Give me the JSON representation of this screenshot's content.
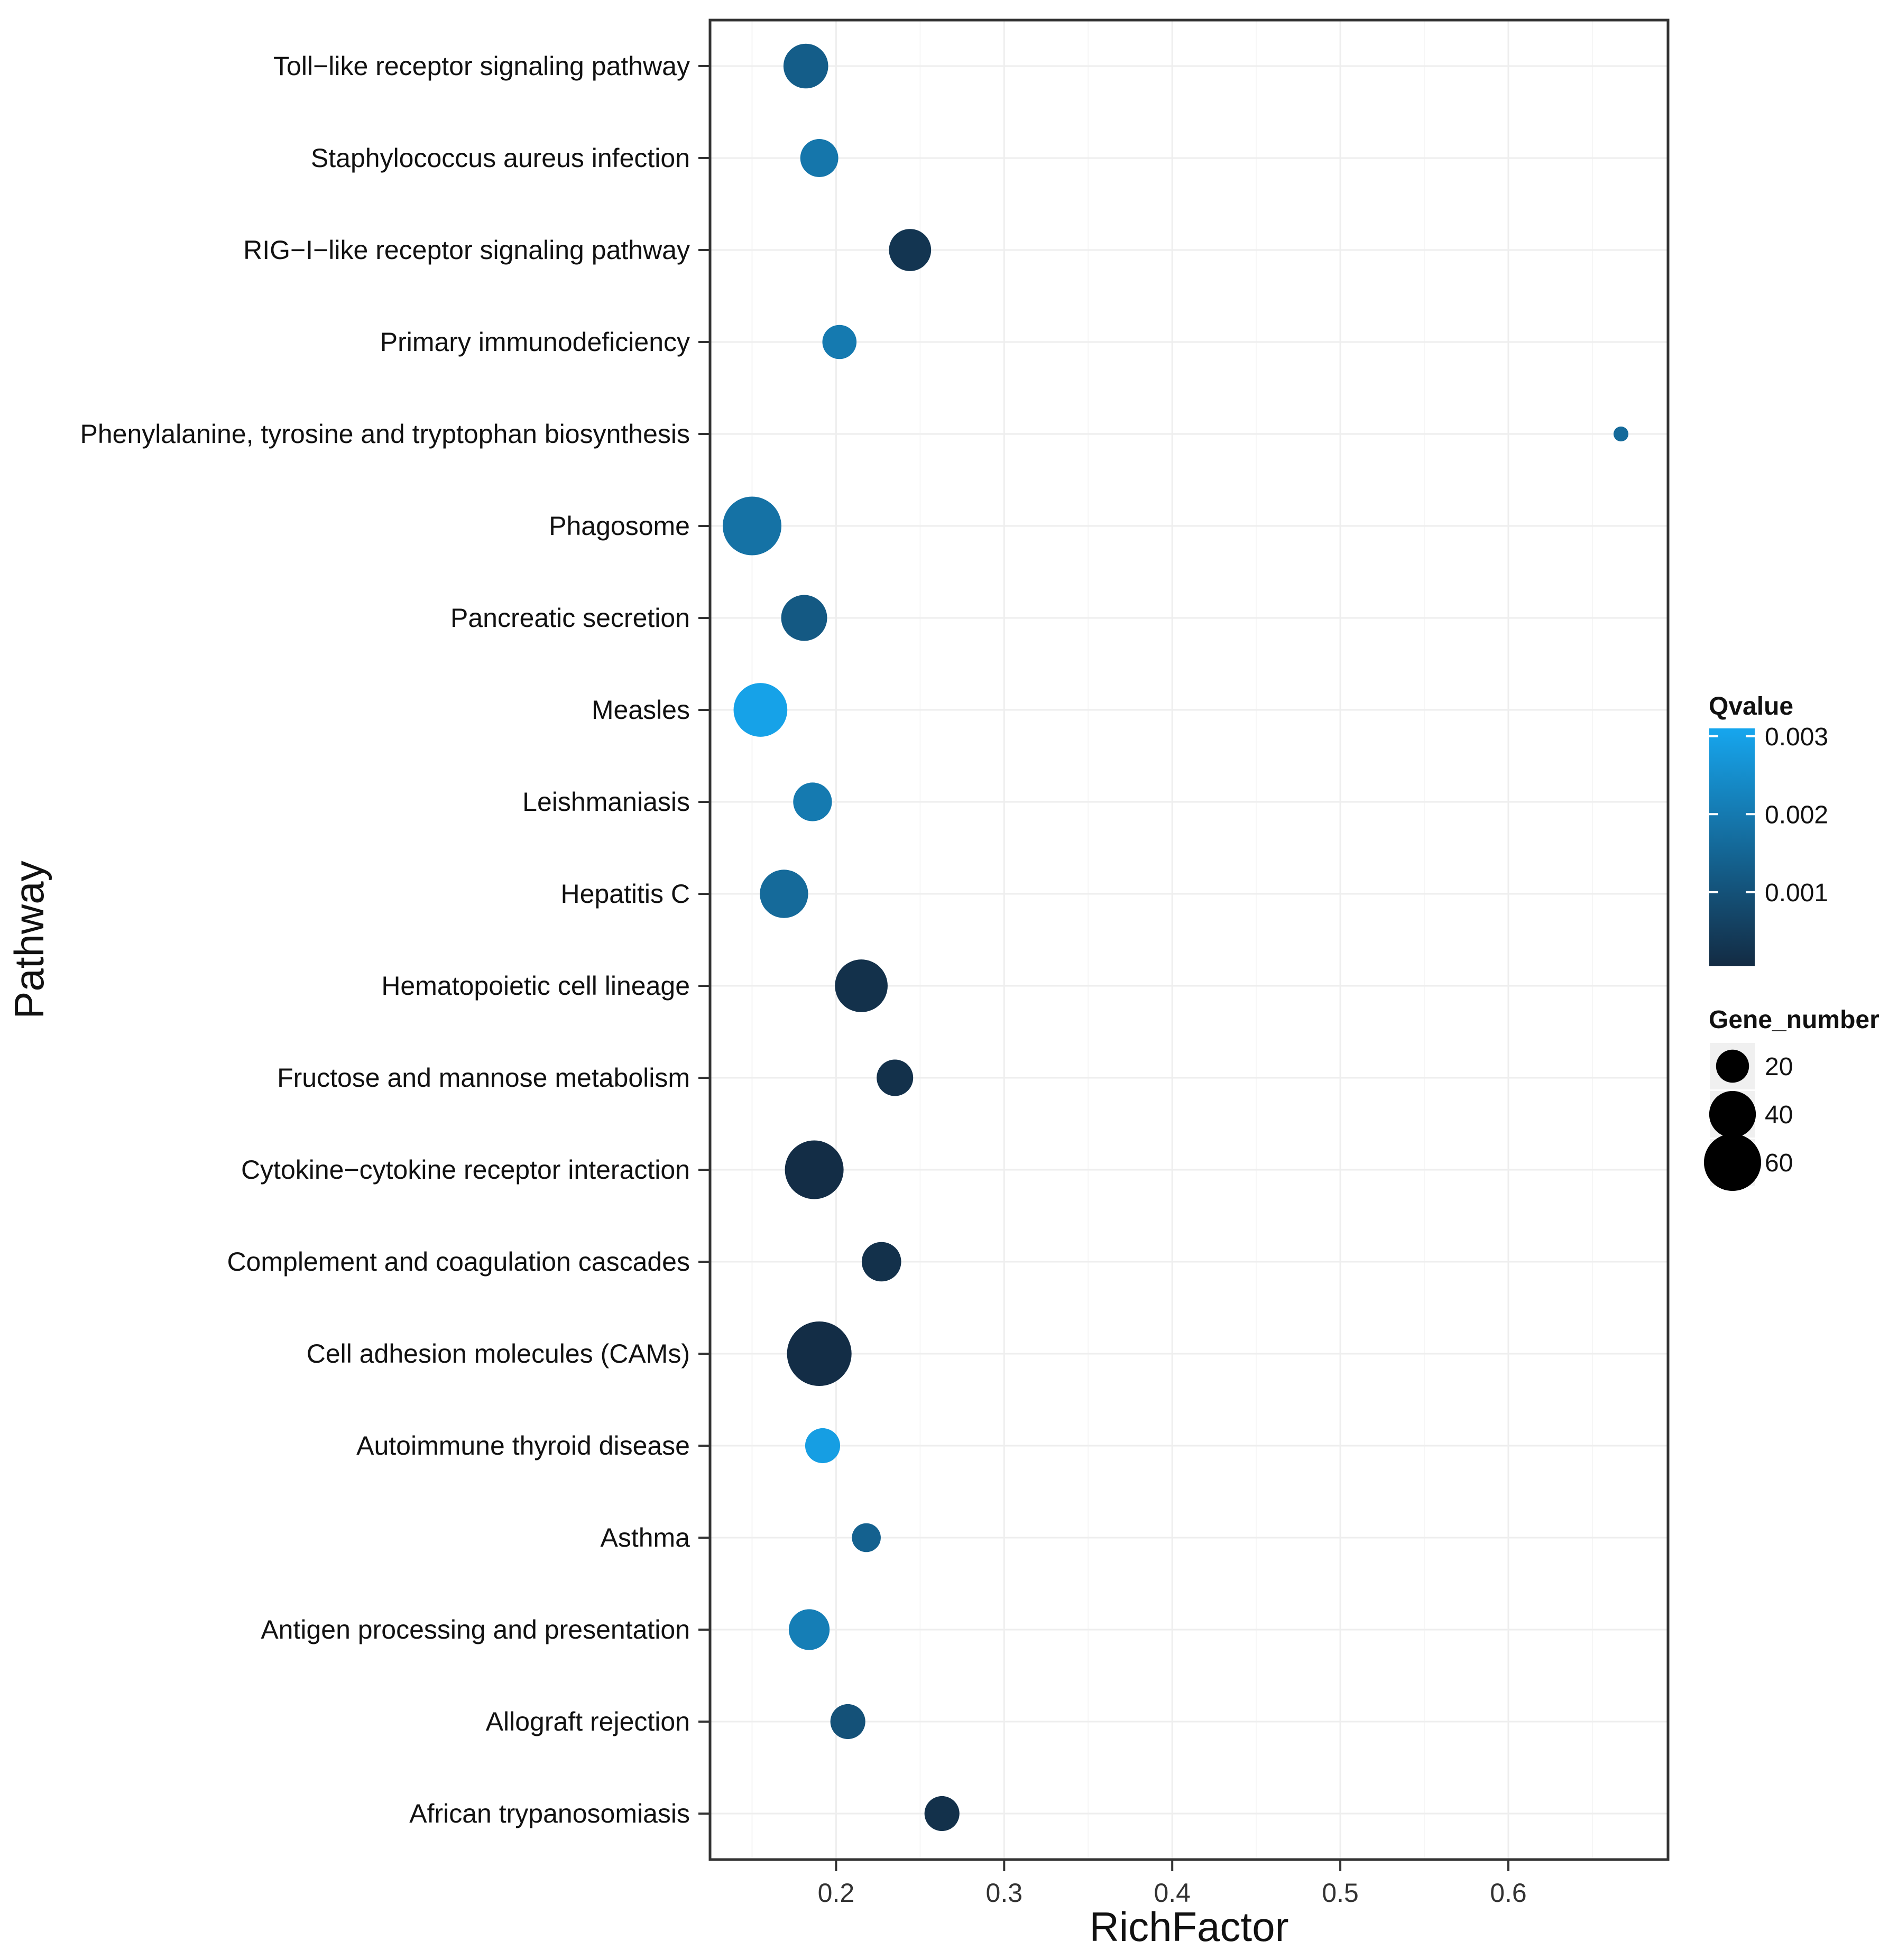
{
  "chart_data": {
    "type": "scatter",
    "title": "",
    "xlabel": "RichFactor",
    "ylabel": "Pathway",
    "xlim": [
      0.125,
      0.695
    ],
    "xticks": [
      0.2,
      0.3,
      0.4,
      0.5,
      0.6
    ],
    "xtick_labels": [
      "0.2",
      "0.3",
      "0.4",
      "0.5",
      "0.6"
    ],
    "grid": true,
    "pathways": [
      "Toll-like receptor signaling pathway",
      "Staphylococcus aureus infection",
      "RIG-I-like receptor signaling pathway",
      "Primary immunodeficiency",
      "Phenylalanine, tyrosine and tryptophan biosynthesis",
      "Phagosome",
      "Pancreatic secretion",
      "Measles",
      "Leishmaniasis",
      "Hepatitis C",
      "Hematopoietic cell lineage",
      "Fructose and mannose metabolism",
      "Cytokine-cytokine receptor interaction",
      "Complement and coagulation cascades",
      "Cell adhesion molecules (CAMs)",
      "Autoimmune thyroid disease",
      "Asthma",
      "Antigen processing and presentation",
      "Allograft rejection",
      "African trypanosomiasis"
    ],
    "points": [
      {
        "pathway": "Toll-like receptor signaling pathway",
        "rich_factor": 0.182,
        "gene_number": 36,
        "qvalue": 0.0013
      },
      {
        "pathway": "Staphylococcus aureus infection",
        "rich_factor": 0.19,
        "gene_number": 26,
        "qvalue": 0.0019
      },
      {
        "pathway": "RIG-I-like receptor signaling pathway",
        "rich_factor": 0.244,
        "gene_number": 32,
        "qvalue": 0.0003
      },
      {
        "pathway": "Primary immunodeficiency",
        "rich_factor": 0.202,
        "gene_number": 21,
        "qvalue": 0.002
      },
      {
        "pathway": "Phenylalanine, tyrosine and tryptophan biosynthesis",
        "rich_factor": 0.667,
        "gene_number": 4,
        "qvalue": 0.0016
      },
      {
        "pathway": "Phagosome",
        "rich_factor": 0.15,
        "gene_number": 62,
        "qvalue": 0.0018
      },
      {
        "pathway": "Pancreatic secretion",
        "rich_factor": 0.181,
        "gene_number": 38,
        "qvalue": 0.0012
      },
      {
        "pathway": "Measles",
        "rich_factor": 0.155,
        "gene_number": 52,
        "qvalue": 0.003
      },
      {
        "pathway": "Leishmaniasis",
        "rich_factor": 0.186,
        "gene_number": 27,
        "qvalue": 0.002
      },
      {
        "pathway": "Hepatitis C",
        "rich_factor": 0.169,
        "gene_number": 42,
        "qvalue": 0.0016
      },
      {
        "pathway": "Hematopoietic cell lineage",
        "rich_factor": 0.215,
        "gene_number": 50,
        "qvalue": 0.0002
      },
      {
        "pathway": "Fructose and mannose metabolism",
        "rich_factor": 0.235,
        "gene_number": 24,
        "qvalue": 0.0002
      },
      {
        "pathway": "Cytokine-cytokine receptor interaction",
        "rich_factor": 0.187,
        "gene_number": 62,
        "qvalue": 0.0001
      },
      {
        "pathway": "Complement and coagulation cascades",
        "rich_factor": 0.227,
        "gene_number": 28,
        "qvalue": 0.0002
      },
      {
        "pathway": "Cell adhesion molecules (CAMs)",
        "rich_factor": 0.19,
        "gene_number": 75,
        "qvalue": 0.0001
      },
      {
        "pathway": "Autoimmune thyroid disease",
        "rich_factor": 0.192,
        "gene_number": 22,
        "qvalue": 0.0029
      },
      {
        "pathway": "Asthma",
        "rich_factor": 0.218,
        "gene_number": 15,
        "qvalue": 0.0014
      },
      {
        "pathway": "Antigen processing and presentation",
        "rich_factor": 0.184,
        "gene_number": 30,
        "qvalue": 0.0021
      },
      {
        "pathway": "Allograft rejection",
        "rich_factor": 0.207,
        "gene_number": 22,
        "qvalue": 0.001
      },
      {
        "pathway": "African trypanosomiasis",
        "rich_factor": 0.263,
        "gene_number": 22,
        "qvalue": 0.0002
      }
    ],
    "color_legend": {
      "title": "Qvalue",
      "ticks": [
        0.001,
        0.002,
        0.003
      ],
      "tick_labels": [
        "0.001",
        "0.002",
        "0.003"
      ],
      "range": [
        5e-05,
        0.0031
      ],
      "low_color": "#132b43",
      "high_color": "#16a6ee"
    },
    "size_legend": {
      "title": "Gene_number",
      "values": [
        20,
        40,
        60
      ],
      "labels": [
        "20",
        "40",
        "60"
      ]
    }
  }
}
